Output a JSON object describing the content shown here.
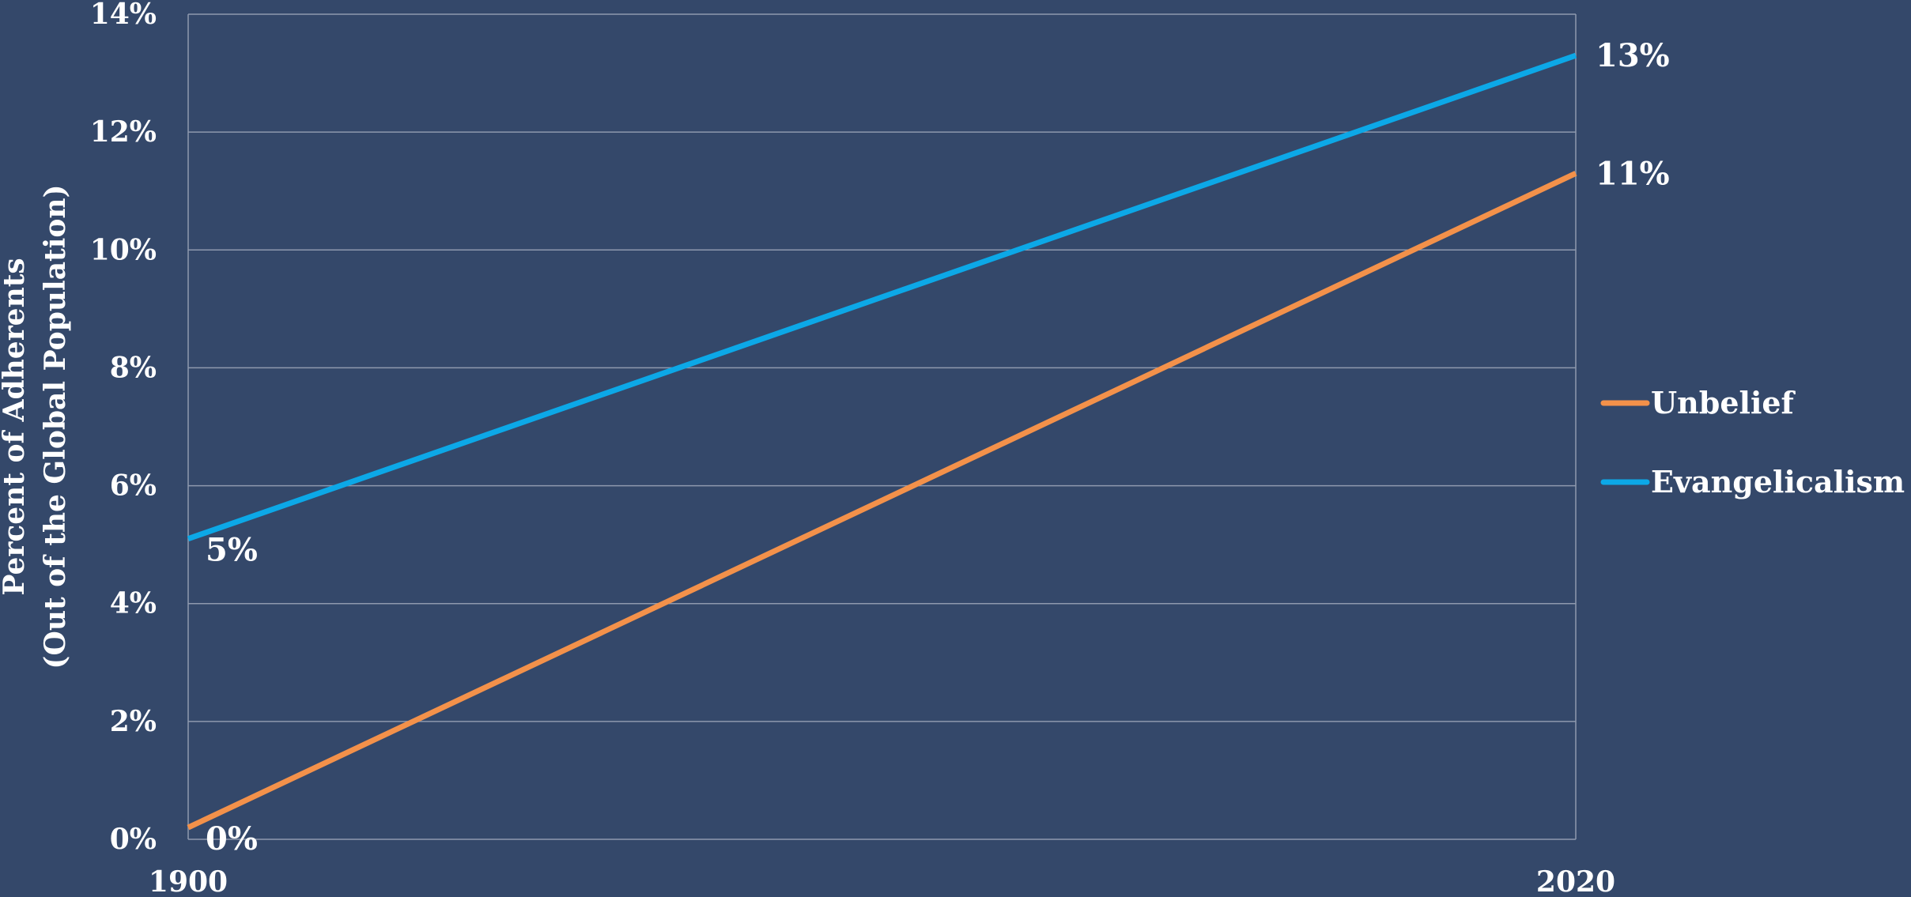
{
  "chart_data": {
    "type": "line",
    "x": [
      1900,
      2020
    ],
    "ylabel": [
      "Percent of Adherents",
      "(Out of the Global Population)"
    ],
    "ylim": [
      0,
      14
    ],
    "yticks": [
      0,
      2,
      4,
      6,
      8,
      10,
      12,
      14
    ],
    "y_tick_labels": [
      "0%",
      "2%",
      "4%",
      "6%",
      "8%",
      "10%",
      "12%",
      "14%"
    ],
    "x_tick_labels": [
      "1900",
      "2020"
    ],
    "grid": true,
    "legend_position": "right",
    "series": [
      {
        "name": "Unbelief",
        "color": "#F3914A",
        "values": [
          0.2,
          11.3
        ],
        "point_labels": [
          "0%",
          "11%"
        ]
      },
      {
        "name": "Evangelicalism",
        "color": "#0CA8E7",
        "values": [
          5.1,
          13.3
        ],
        "point_labels": [
          "5%",
          "13%"
        ]
      }
    ]
  }
}
